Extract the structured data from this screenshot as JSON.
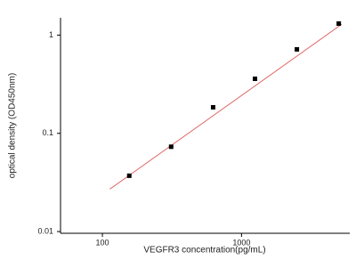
{
  "chart_data": {
    "type": "scatter",
    "x_label": "VEGFR3 concentration(pg/mL)",
    "y_label": "optical density (OD450nm)",
    "xscale": "log",
    "yscale": "log",
    "xlim": [
      50,
      6000
    ],
    "ylim": [
      0.0096,
      1.5
    ],
    "xticks": [
      100,
      1000
    ],
    "yticks": [
      0.01,
      0.1,
      1
    ],
    "series": [
      {
        "type": "scatter",
        "color": "#000000",
        "x": [
          156,
          312,
          625,
          1250,
          2500,
          5000
        ],
        "values": [
          0.037,
          0.073,
          0.184,
          0.359,
          0.716,
          1.31
        ]
      },
      {
        "type": "line",
        "color": "#e06a6a",
        "x": [
          113,
          5250
        ],
        "values": [
          0.027,
          1.29
        ]
      }
    ]
  }
}
